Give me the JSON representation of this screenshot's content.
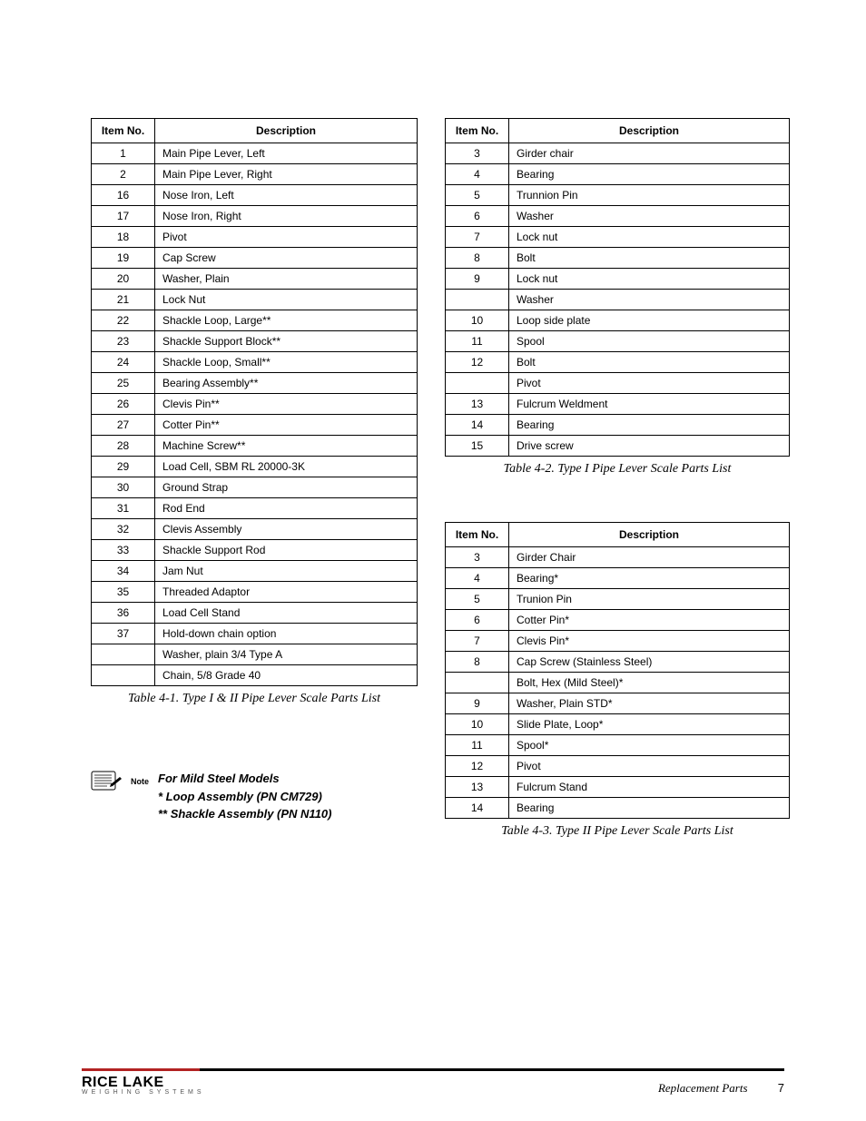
{
  "headers": {
    "itemno": "Item No.",
    "description": "Description"
  },
  "table1": {
    "caption": "Table 4-1. Type I & II Pipe Lever Scale Parts List",
    "rows": [
      [
        "1",
        "Main Pipe Lever, Left"
      ],
      [
        "2",
        "Main Pipe Lever, Right"
      ],
      [
        "16",
        "Nose Iron, Left"
      ],
      [
        "17",
        "Nose Iron, Right"
      ],
      [
        "18",
        "Pivot"
      ],
      [
        "19",
        "Cap Screw"
      ],
      [
        "20",
        "Washer, Plain"
      ],
      [
        "21",
        "Lock Nut"
      ],
      [
        "22",
        "Shackle Loop, Large**"
      ],
      [
        "23",
        "Shackle Support Block**"
      ],
      [
        "24",
        "Shackle Loop, Small**"
      ],
      [
        "25",
        "Bearing Assembly**"
      ],
      [
        "26",
        "Clevis Pin**"
      ],
      [
        "27",
        "Cotter Pin**"
      ],
      [
        "28",
        "Machine Screw**"
      ],
      [
        "29",
        "Load Cell, SBM RL 20000-3K"
      ],
      [
        "30",
        "Ground Strap"
      ],
      [
        "31",
        "Rod End"
      ],
      [
        "32",
        "Clevis Assembly"
      ],
      [
        "33",
        "Shackle Support Rod"
      ],
      [
        "34",
        "Jam Nut"
      ],
      [
        "35",
        "Threaded Adaptor"
      ],
      [
        "36",
        "Load Cell Stand"
      ],
      [
        "37",
        "Hold-down chain option"
      ],
      [
        "",
        "Washer, plain 3/4 Type A"
      ],
      [
        "",
        "Chain, 5/8 Grade 40"
      ]
    ]
  },
  "table2": {
    "caption": "Table 4-2. Type I Pipe Lever Scale Parts List",
    "rows": [
      [
        "3",
        "Girder chair"
      ],
      [
        "4",
        "Bearing"
      ],
      [
        "5",
        "Trunnion Pin"
      ],
      [
        "6",
        "Washer"
      ],
      [
        "7",
        "Lock nut"
      ],
      [
        "8",
        "Bolt"
      ],
      [
        "9",
        "Lock nut"
      ],
      [
        "",
        "Washer"
      ],
      [
        "10",
        "Loop side plate"
      ],
      [
        "11",
        "Spool"
      ],
      [
        "12",
        "Bolt"
      ],
      [
        "",
        "Pivot"
      ],
      [
        "13",
        "Fulcrum Weldment"
      ],
      [
        "14",
        "Bearing"
      ],
      [
        "15",
        "Drive screw"
      ]
    ]
  },
  "table3": {
    "caption": "Table 4-3. Type II Pipe Lever Scale Parts List",
    "rows": [
      [
        "3",
        "Girder Chair"
      ],
      [
        "4",
        "Bearing*"
      ],
      [
        "5",
        "Trunion Pin"
      ],
      [
        "6",
        "Cotter Pin*"
      ],
      [
        "7",
        "Clevis Pin*"
      ],
      [
        "8",
        "Cap Screw (Stainless Steel)"
      ],
      [
        "",
        "Bolt, Hex (Mild Steel)*"
      ],
      [
        "9",
        "Washer, Plain STD*"
      ],
      [
        "10",
        "Slide Plate, Loop*"
      ],
      [
        "11",
        "Spool*"
      ],
      [
        "12",
        "Pivot"
      ],
      [
        "13",
        "Fulcrum Stand"
      ],
      [
        "14",
        "Bearing"
      ]
    ]
  },
  "note": {
    "label": "Note",
    "line1": "For Mild Steel Models",
    "line2": "* Loop Assembly (PN CM729)",
    "line3": "** Shackle Assembly (PN N110)"
  },
  "footer": {
    "brand": "RICE LAKE",
    "sub": "WEIGHING SYSTEMS",
    "section": "Replacement Parts",
    "page": "7"
  }
}
